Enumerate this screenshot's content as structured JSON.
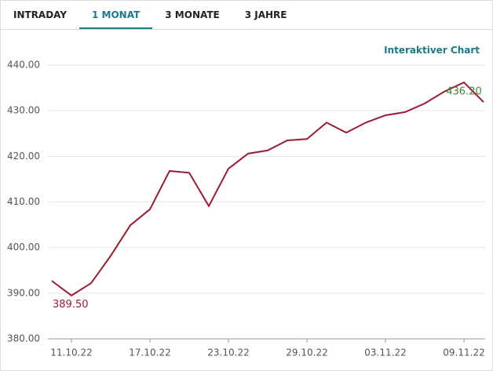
{
  "tabs": [
    "INTRADAY",
    "1 MONAT",
    "3 MONATE",
    "3 JAHRE"
  ],
  "active_tab": 1,
  "link": "Interaktiver Chart",
  "chart_data": {
    "type": "line",
    "categories": [
      null,
      "11.10.22",
      null,
      null,
      null,
      "17.10.22",
      null,
      null,
      null,
      "23.10.22",
      null,
      null,
      null,
      "29.10.22",
      null,
      null,
      null,
      "03.11.22",
      null,
      null,
      null,
      "09.11.22",
      null
    ],
    "series": [
      {
        "color": "#9b1b30",
        "values": [
          392.7,
          389.5,
          392.2,
          398.2,
          404.9,
          408.4,
          416.8,
          416.4,
          409.1,
          417.3,
          420.6,
          421.3,
          423.5,
          423.8,
          427.4,
          425.2,
          427.4,
          429.0,
          429.7,
          431.6,
          434.2,
          436.2,
          431.9
        ],
        "value_labels": [
          null,
          "389.50",
          null,
          null,
          null,
          null,
          null,
          null,
          null,
          null,
          null,
          null,
          null,
          null,
          null,
          null,
          null,
          null,
          null,
          null,
          null,
          "436.20",
          null
        ],
        "value_label_colors": [
          null,
          "#9b1b30",
          null,
          null,
          null,
          null,
          null,
          null,
          null,
          null,
          null,
          null,
          null,
          null,
          null,
          null,
          null,
          null,
          null,
          null,
          null,
          "#3a8a2e",
          null
        ]
      }
    ],
    "ylim": [
      380,
      440
    ],
    "yticks": [
      {
        "value": 380,
        "label": "380.00"
      },
      {
        "value": 390,
        "label": "390.00"
      },
      {
        "value": 400,
        "label": "400.00"
      },
      {
        "value": 410,
        "label": "410.00"
      },
      {
        "value": 420,
        "label": "420.00"
      },
      {
        "value": 430,
        "label": "430.00"
      },
      {
        "value": 440,
        "label": "440.00"
      }
    ],
    "grid": true
  }
}
